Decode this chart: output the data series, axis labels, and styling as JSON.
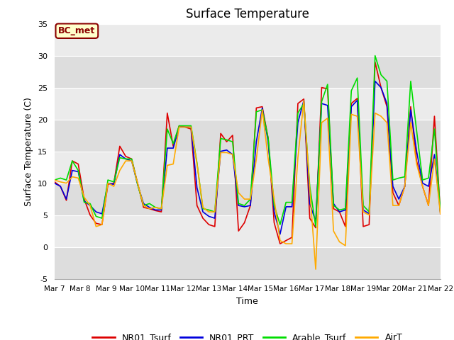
{
  "title": "Surface Temperature",
  "ylabel": "Surface Temperature (C)",
  "xlabel": "Time",
  "annotation": "BC_met",
  "ylim": [
    -5,
    35
  ],
  "xtick_labels": [
    "Mar 7",
    "Mar 8",
    "Mar 9",
    "Mar 10",
    "Mar 11",
    "Mar 12",
    "Mar 13",
    "Mar 14",
    "Mar 15",
    "Mar 16",
    "Mar 17",
    "Mar 18",
    "Mar 19",
    "Mar 20",
    "Mar 21",
    "Mar 22"
  ],
  "background_color": "#e8e8e8",
  "band_color_light": "#e8e8e8",
  "band_color_dark": "#d8d8d8",
  "line_colors": {
    "NR01_Tsurf": "#dd0000",
    "NR01_PRT": "#0000dd",
    "Arable_Tsurf": "#00dd00",
    "AirT": "#ffaa00"
  },
  "series": {
    "NR01_Tsurf": [
      10.2,
      9.5,
      7.3,
      13.5,
      13.0,
      7.5,
      5.0,
      3.7,
      3.5,
      9.8,
      10.0,
      15.8,
      14.2,
      13.8,
      10.0,
      6.2,
      6.0,
      5.7,
      5.5,
      21.0,
      15.8,
      19.0,
      18.8,
      18.5,
      6.5,
      4.5,
      3.5,
      3.2,
      17.8,
      16.5,
      17.5,
      2.5,
      3.8,
      6.5,
      21.8,
      22.0,
      17.0,
      3.8,
      0.5,
      1.0,
      1.5,
      22.5,
      23.2,
      4.5,
      3.0,
      25.0,
      24.8,
      6.0,
      5.5,
      3.2,
      22.5,
      23.3,
      3.2,
      3.5,
      29.0,
      25.0,
      22.0,
      8.5,
      6.5,
      9.5,
      22.0,
      13.5,
      9.5,
      6.5,
      20.5,
      5.2
    ],
    "NR01_PRT": [
      10.0,
      9.5,
      7.5,
      12.0,
      11.8,
      7.2,
      6.5,
      5.5,
      5.2,
      10.0,
      9.8,
      14.5,
      13.8,
      13.5,
      9.8,
      6.8,
      6.2,
      5.8,
      5.8,
      15.5,
      15.5,
      18.8,
      18.8,
      18.8,
      9.3,
      5.5,
      4.8,
      4.5,
      15.0,
      15.2,
      14.5,
      6.5,
      6.3,
      6.5,
      16.5,
      21.8,
      16.5,
      5.5,
      2.0,
      6.3,
      6.3,
      19.5,
      23.0,
      6.8,
      4.0,
      22.5,
      22.2,
      6.8,
      5.5,
      5.8,
      22.0,
      23.0,
      5.8,
      5.2,
      26.0,
      25.0,
      22.5,
      9.5,
      7.5,
      9.5,
      21.5,
      15.0,
      10.0,
      9.5,
      14.5,
      5.5
    ],
    "Arable_Tsurf": [
      10.5,
      10.8,
      10.5,
      13.5,
      12.0,
      7.0,
      6.8,
      4.8,
      4.5,
      10.5,
      10.2,
      14.0,
      13.8,
      13.8,
      9.8,
      6.5,
      6.8,
      6.2,
      6.0,
      18.5,
      16.2,
      19.0,
      19.0,
      19.0,
      13.2,
      6.0,
      5.8,
      5.5,
      17.0,
      16.8,
      16.5,
      6.8,
      6.5,
      7.5,
      21.2,
      21.5,
      17.0,
      6.5,
      3.5,
      7.0,
      7.0,
      21.0,
      22.5,
      9.5,
      3.2,
      22.8,
      25.5,
      6.5,
      5.8,
      6.0,
      24.5,
      26.5,
      6.5,
      5.5,
      30.0,
      27.0,
      26.0,
      10.5,
      10.8,
      11.0,
      26.0,
      18.2,
      10.5,
      10.8,
      18.5,
      5.5
    ],
    "AirT": [
      10.5,
      10.2,
      10.0,
      11.0,
      10.8,
      7.8,
      6.5,
      3.2,
      3.5,
      10.0,
      9.5,
      12.0,
      13.5,
      13.5,
      10.0,
      6.5,
      6.0,
      6.2,
      6.0,
      12.8,
      13.0,
      18.8,
      18.8,
      18.8,
      13.0,
      6.2,
      5.5,
      5.5,
      14.8,
      14.8,
      14.5,
      8.5,
      7.5,
      7.5,
      13.8,
      21.5,
      13.8,
      7.5,
      1.0,
      0.5,
      0.5,
      14.0,
      23.0,
      9.0,
      -3.5,
      19.5,
      20.2,
      2.5,
      0.8,
      0.2,
      20.8,
      20.5,
      5.5,
      5.0,
      21.0,
      20.5,
      19.5,
      6.5,
      6.5,
      9.5,
      19.5,
      13.0,
      9.5,
      6.5,
      13.8,
      5.2
    ]
  }
}
